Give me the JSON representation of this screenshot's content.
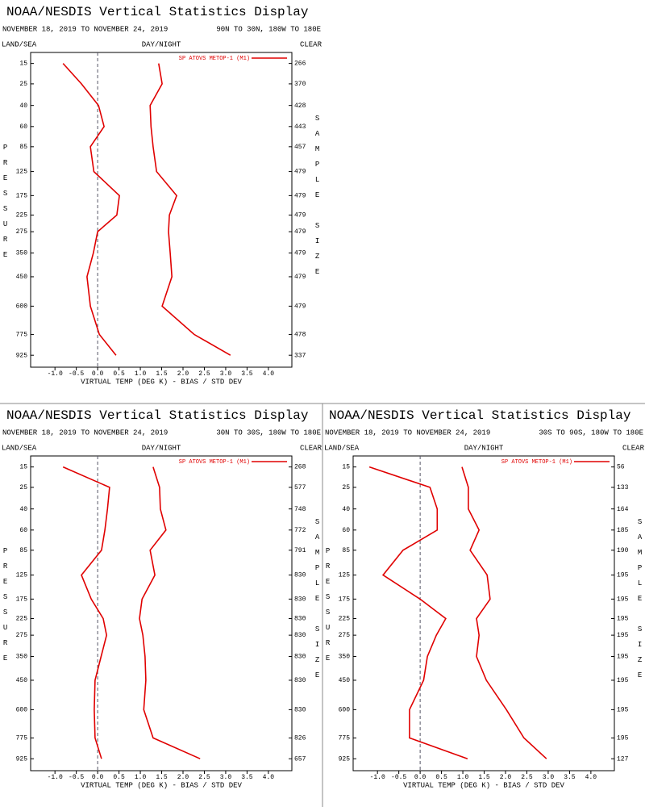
{
  "chart_data": [
    {
      "type": "line",
      "title": "NOAA/NESDIS Vertical Statistics Display",
      "date_range": "NOVEMBER 18, 2019 TO NOVEMBER 24, 2019",
      "region": "90N TO 30N, 180W TO 180E",
      "land_sea_label": "LAND/SEA",
      "day_night_label": "DAY/NIGHT",
      "clear_label": "CLEAR",
      "y_label": "PRESSURE",
      "y2_label": "SAMPLE SIZE",
      "x_label": "VIRTUAL TEMP (DEG K) - BIAS / STD DEV",
      "yscale": "power",
      "ylim": [
        11,
        1020
      ],
      "y": [
        15,
        25,
        40,
        60,
        85,
        125,
        175,
        225,
        275,
        350,
        450,
        600,
        775,
        925
      ],
      "sample_sizes": [
        266,
        370,
        428,
        443,
        457,
        479,
        479,
        479,
        479,
        479,
        479,
        479,
        478,
        337
      ],
      "xlim": [
        -1.57,
        4.55
      ],
      "xticks": [
        {
          "value": -1,
          "label": "-1.0"
        },
        -0.5,
        {
          "value": 0,
          "label": "0.0"
        },
        0.5,
        {
          "value": 1,
          "label": "1.0"
        },
        1.5,
        {
          "value": 2,
          "label": "2.0"
        },
        2.5,
        {
          "value": 3,
          "label": "3.0"
        },
        3.5,
        {
          "value": 4,
          "label": "4.0"
        }
      ],
      "series": [
        {
          "name": "SP ATOVS METOP-1 (M1)",
          "color": "#e00000",
          "bias": [
            -0.81,
            -0.38,
            0.02,
            0.15,
            -0.17,
            -0.09,
            0.51,
            0.45,
            0.0,
            -0.1,
            -0.25,
            -0.17,
            0.04,
            0.43
          ],
          "std_dev": [
            1.43,
            1.51,
            1.23,
            1.25,
            1.3,
            1.38,
            1.85,
            1.68,
            1.66,
            1.7,
            1.74,
            1.51,
            2.26,
            3.11
          ]
        }
      ]
    },
    {
      "type": "line",
      "title": "NOAA/NESDIS Vertical Statistics Display",
      "date_range": "NOVEMBER 18, 2019 TO NOVEMBER 24, 2019",
      "region": "30N TO 30S, 180W TO 180E",
      "land_sea_label": "LAND/SEA",
      "day_night_label": "DAY/NIGHT",
      "clear_label": "CLEAR",
      "y_label": "PRESSURE",
      "y2_label": "SAMPLE SIZE",
      "x_label": "VIRTUAL TEMP (DEG K) - BIAS / STD DEV",
      "yscale": "power",
      "ylim": [
        11,
        1020
      ],
      "y": [
        15,
        25,
        40,
        60,
        85,
        125,
        175,
        225,
        275,
        350,
        450,
        600,
        775,
        925
      ],
      "sample_sizes": [
        268,
        577,
        748,
        772,
        791,
        830,
        830,
        830,
        830,
        830,
        830,
        830,
        826,
        657
      ],
      "xlim": [
        -1.57,
        4.55
      ],
      "xticks": [
        {
          "value": -1,
          "label": "-1.0"
        },
        -0.5,
        {
          "value": 0,
          "label": "0.0"
        },
        0.5,
        {
          "value": 1,
          "label": "1.0"
        },
        1.5,
        {
          "value": 2,
          "label": "2.0"
        },
        2.5,
        {
          "value": 3,
          "label": "3.0"
        },
        3.5,
        {
          "value": 4,
          "label": "4.0"
        }
      ],
      "series": [
        {
          "name": "SP ATOVS METOP-1 (M1)",
          "color": "#e00000",
          "bias": [
            -0.81,
            0.28,
            0.23,
            0.17,
            0.09,
            -0.38,
            -0.15,
            0.13,
            0.21,
            0.08,
            -0.06,
            -0.08,
            -0.06,
            0.09
          ],
          "std_dev": [
            1.3,
            1.45,
            1.47,
            1.6,
            1.23,
            1.34,
            1.04,
            0.98,
            1.06,
            1.11,
            1.13,
            1.08,
            1.3,
            2.4
          ]
        }
      ]
    },
    {
      "type": "line",
      "title": "NOAA/NESDIS Vertical Statistics Display",
      "date_range": "NOVEMBER 18, 2019 TO NOVEMBER 24, 2019",
      "region": "30S TO 90S, 180W TO 180E",
      "land_sea_label": "LAND/SEA",
      "day_night_label": "DAY/NIGHT",
      "clear_label": "CLEAR",
      "y_label": "PRESSURE",
      "y2_label": "SAMPLE SIZE",
      "x_label": "VIRTUAL TEMP (DEG K) - BIAS / STD DEV",
      "yscale": "power",
      "ylim": [
        11,
        1020
      ],
      "y": [
        15,
        25,
        40,
        60,
        85,
        125,
        175,
        225,
        275,
        350,
        450,
        600,
        775,
        925
      ],
      "sample_sizes": [
        56,
        133,
        164,
        185,
        190,
        195,
        195,
        195,
        195,
        195,
        195,
        195,
        195,
        127
      ],
      "xlim": [
        -1.57,
        4.55
      ],
      "xticks": [
        {
          "value": -1,
          "label": "-1.0"
        },
        -0.5,
        {
          "value": 0,
          "label": "0.0"
        },
        0.5,
        {
          "value": 1,
          "label": "1.0"
        },
        1.5,
        {
          "value": 2,
          "label": "2.0"
        },
        2.5,
        {
          "value": 3,
          "label": "3.0"
        },
        3.5,
        {
          "value": 4,
          "label": "4.0"
        }
      ],
      "series": [
        {
          "name": "SP ATOVS METOP-1 (M1)",
          "color": "#e00000",
          "bias": [
            -1.19,
            0.23,
            0.4,
            0.4,
            -0.4,
            -0.87,
            0.0,
            0.6,
            0.38,
            0.17,
            0.08,
            -0.25,
            -0.25,
            1.11
          ],
          "std_dev": [
            0.98,
            1.13,
            1.13,
            1.38,
            1.17,
            1.57,
            1.64,
            1.32,
            1.38,
            1.32,
            1.55,
            2.02,
            2.43,
            2.96
          ]
        }
      ]
    }
  ]
}
